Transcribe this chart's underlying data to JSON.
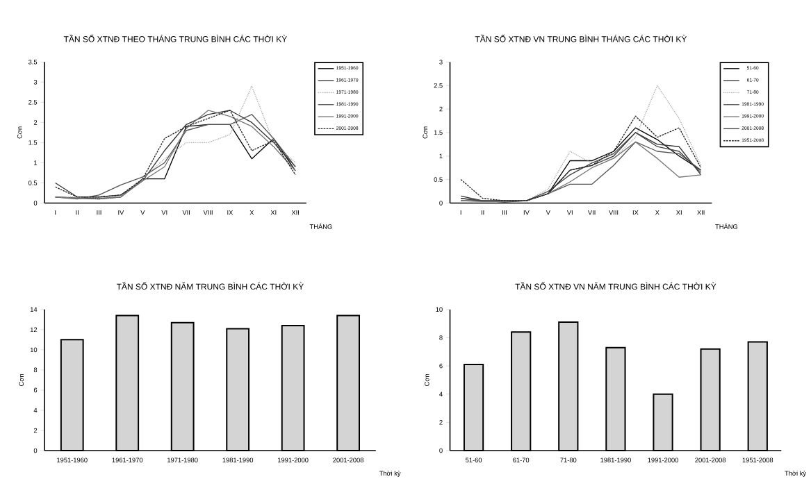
{
  "chart_data": [
    {
      "type": "line",
      "title": "TẦN SỐ XTNĐ THEO THÁNG TRUNG BÌNH CÁC THỜI KỲ",
      "xlabel": "THÁNG",
      "ylabel": "Cơn",
      "legend": "right",
      "categories": [
        "I",
        "II",
        "III",
        "IV",
        "V",
        "VI",
        "VII",
        "VIII",
        "IX",
        "X",
        "XI",
        "XII"
      ],
      "ylim": [
        0,
        3.5
      ],
      "yticks": [
        0,
        0.5,
        1,
        1.5,
        2,
        2.5,
        3,
        3.5
      ],
      "series": [
        {
          "name": "1951-1960",
          "color": "#000000",
          "line_style": "solid",
          "values": [
            0.15,
            0.12,
            0.1,
            0.15,
            0.6,
            0.6,
            1.9,
            1.95,
            1.95,
            1.1,
            1.6,
            0.8
          ]
        },
        {
          "name": "1961-1970",
          "color": "#333333",
          "line_style": "solid",
          "values": [
            0.5,
            0.15,
            0.15,
            0.2,
            0.55,
            1.3,
            1.95,
            2.2,
            2.3,
            2.0,
            1.5,
            0.9
          ]
        },
        {
          "name": "1971-1980",
          "color": "#aaaaaa",
          "line_style": "dotted",
          "values": [
            0.15,
            0.15,
            0.1,
            0.15,
            0.6,
            1.1,
            1.5,
            1.5,
            1.7,
            2.9,
            1.5,
            1.0
          ]
        },
        {
          "name": "1981-1990",
          "color": "#555555",
          "line_style": "solid",
          "values": [
            0.15,
            0.1,
            0.2,
            0.45,
            0.65,
            1.0,
            1.8,
            1.95,
            1.95,
            2.2,
            1.6,
            0.9
          ]
        },
        {
          "name": "1991-2000",
          "color": "#777777",
          "line_style": "solid",
          "values": [
            0.15,
            0.12,
            0.12,
            0.15,
            0.55,
            0.9,
            1.85,
            2.3,
            2.15,
            1.9,
            1.4,
            0.8
          ]
        },
        {
          "name": "2001-2008",
          "color": "#222222",
          "line_style": "dashed",
          "values": [
            0.4,
            0.15,
            0.15,
            0.2,
            0.6,
            1.6,
            1.9,
            2.1,
            2.3,
            1.3,
            1.55,
            0.7
          ]
        }
      ]
    },
    {
      "type": "line",
      "title": "TẦN SỐ XTNĐ VN TRUNG BÌNH THÁNG CÁC THỜI KỲ",
      "xlabel": "THÁNG",
      "ylabel": "Cơn",
      "legend": "right",
      "categories": [
        "I",
        "II",
        "III",
        "IV",
        "V",
        "VI",
        "VII",
        "VIII",
        "IX",
        "X",
        "XI",
        "XII"
      ],
      "ylim": [
        0,
        3
      ],
      "yticks": [
        0,
        0.5,
        1,
        1.5,
        2,
        2.5,
        3
      ],
      "series": [
        {
          "name": "51-60",
          "color": "#000000",
          "line_style": "solid",
          "values": [
            0.05,
            0.05,
            0.05,
            0.05,
            0.2,
            0.9,
            0.9,
            1.1,
            1.6,
            1.35,
            1.0,
            0.7
          ]
        },
        {
          "name": "61-70",
          "color": "#333333",
          "line_style": "solid",
          "values": [
            0.15,
            0.05,
            0.02,
            0.05,
            0.2,
            0.7,
            0.8,
            1.0,
            1.5,
            1.25,
            1.2,
            0.6
          ]
        },
        {
          "name": "71-80",
          "color": "#aaaaaa",
          "line_style": "dotted",
          "values": [
            0.1,
            0.05,
            0.05,
            0.05,
            0.3,
            1.1,
            0.85,
            0.95,
            1.4,
            2.5,
            1.8,
            0.8
          ]
        },
        {
          "name": "1981-1990",
          "color": "#555555",
          "line_style": "solid",
          "values": [
            0.1,
            0.05,
            0.05,
            0.05,
            0.2,
            0.4,
            0.4,
            0.8,
            1.3,
            1.1,
            1.05,
            0.7
          ]
        },
        {
          "name": "1991-2000",
          "color": "#777777",
          "line_style": "solid",
          "values": [
            0.05,
            0.03,
            0.03,
            0.05,
            0.2,
            0.45,
            0.75,
            0.95,
            1.3,
            0.95,
            0.55,
            0.6
          ]
        },
        {
          "name": "2001-2008",
          "color": "#444444",
          "line_style": "solid",
          "values": [
            0.1,
            0.05,
            0.05,
            0.05,
            0.25,
            0.6,
            0.85,
            1.05,
            1.5,
            1.2,
            1.1,
            0.65
          ]
        },
        {
          "name": "1951-2008",
          "color": "#222222",
          "line_style": "dashed",
          "values": [
            0.5,
            0.1,
            0.05,
            0.05,
            0.2,
            0.7,
            0.8,
            1.1,
            1.85,
            1.4,
            1.6,
            0.75
          ]
        }
      ]
    },
    {
      "type": "bar",
      "title": "TẦN SỐ XTNĐ NĂM TRUNG BÌNH CÁC THỜI KỲ",
      "xlabel": "Thời kỳ",
      "ylabel": "Cơn",
      "color": "#d4d4d4",
      "categories": [
        "1951-1960",
        "1961-1970",
        "1971-1980",
        "1981-1990",
        "1991-2000",
        "2001-2008"
      ],
      "ylim": [
        0,
        14
      ],
      "yticks": [
        0,
        2,
        4,
        6,
        8,
        10,
        12,
        14
      ],
      "values": [
        11.0,
        13.4,
        12.7,
        12.1,
        12.4,
        13.4
      ]
    },
    {
      "type": "bar",
      "title": "TẦN SỐ XTNĐ VN NĂM TRUNG BÌNH CÁC THỜI KỲ",
      "xlabel": "Thời kỳ",
      "ylabel": "Cơn",
      "color": "#d4d4d4",
      "categories": [
        "51-60",
        "61-70",
        "71-80",
        "1981-1990",
        "1991-2000",
        "2001-2008",
        "1951-2008"
      ],
      "ylim": [
        0,
        10
      ],
      "yticks": [
        0,
        2,
        4,
        6,
        8,
        10
      ],
      "values": [
        6.1,
        8.4,
        9.1,
        7.3,
        4.0,
        7.2,
        7.7
      ]
    }
  ]
}
